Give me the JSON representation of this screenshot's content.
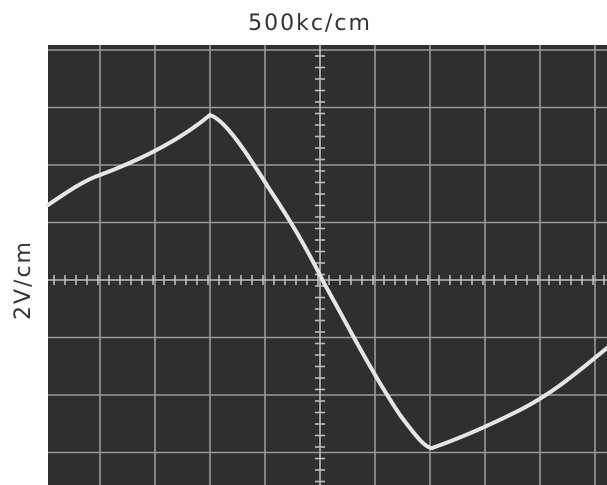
{
  "labels": {
    "top": "500kc/cm",
    "side": "2V/cm"
  }
}
